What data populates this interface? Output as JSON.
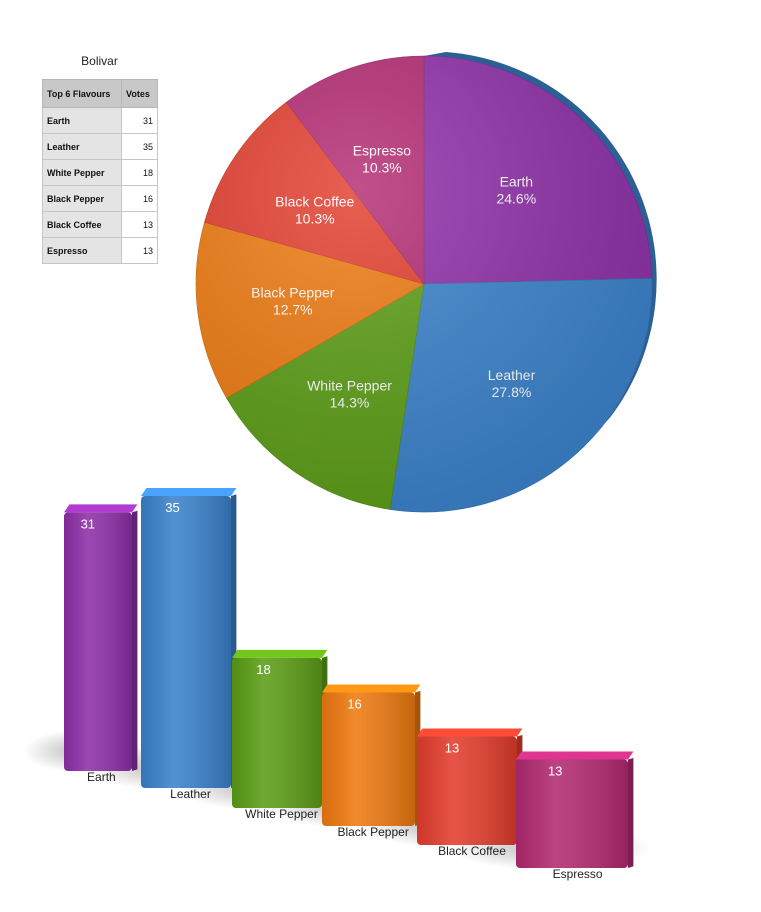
{
  "table": {
    "title": "Bolivar",
    "header_flavour": "Top 6 Flavours",
    "header_votes": "Votes",
    "rows": [
      {
        "name": "Earth",
        "votes": "31"
      },
      {
        "name": "Leather",
        "votes": "35"
      },
      {
        "name": "White Pepper",
        "votes": "18"
      },
      {
        "name": "Black Pepper",
        "votes": "16"
      },
      {
        "name": "Black Coffee",
        "votes": "13"
      },
      {
        "name": "Espresso",
        "votes": "13"
      }
    ]
  },
  "chart_data": [
    {
      "type": "pie",
      "title": "",
      "slices": [
        {
          "label": "Earth",
          "percent_label": "24.6%",
          "value": 31,
          "color": "#8e2fa8"
        },
        {
          "label": "Leather",
          "percent_label": "27.8%",
          "value": 35,
          "color": "#3a82cc"
        },
        {
          "label": "White Pepper",
          "percent_label": "14.3%",
          "value": 18,
          "color": "#5c9e16"
        },
        {
          "label": "Black Pepper",
          "percent_label": "12.7%",
          "value": 16,
          "color": "#ef7a10"
        },
        {
          "label": "Black Coffee",
          "percent_label": "10.3%",
          "value": 13,
          "color": "#e33d2d"
        },
        {
          "label": "Espresso",
          "percent_label": "10.3%",
          "value": 13,
          "color": "#b32a72"
        }
      ]
    },
    {
      "type": "bar",
      "title": "",
      "categories": [
        "Earth",
        "Leather",
        "White Pepper",
        "Black Pepper",
        "Black Coffee",
        "Espresso"
      ],
      "values": [
        31,
        35,
        18,
        16,
        13,
        13
      ],
      "value_labels": [
        "31",
        "35",
        "18",
        "16",
        "13",
        "13"
      ],
      "colors": [
        "#8e2fa8",
        "#3a82cc",
        "#5c9e16",
        "#ef7a10",
        "#e33d2d",
        "#b32a72"
      ],
      "ylim": [
        0,
        35
      ],
      "style": "3d"
    }
  ]
}
